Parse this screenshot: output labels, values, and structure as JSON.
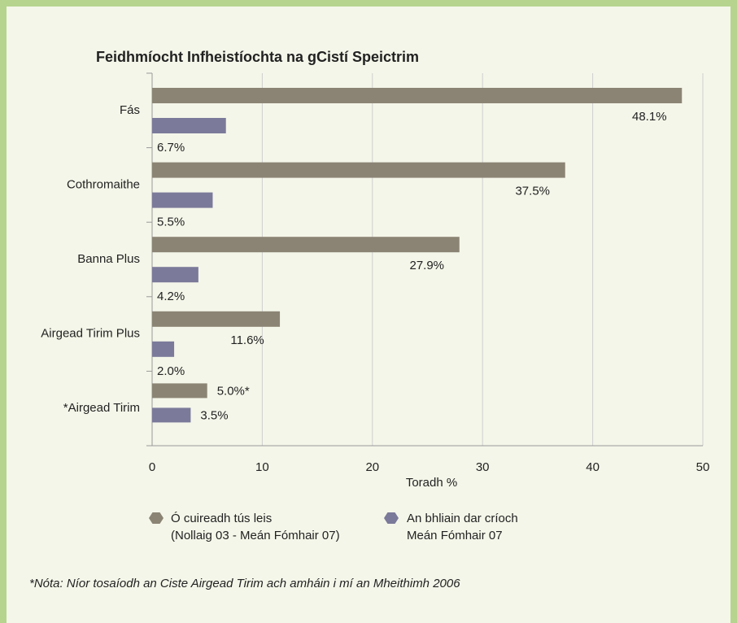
{
  "chart_data": {
    "type": "hbar",
    "title": "Feidhmíocht Infheistíochta na gCistí Speictrim",
    "categories": [
      "Fás",
      "Cothromaithe",
      "Banna Plus",
      "Airgead Tirim Plus",
      "*Airgead Tirim"
    ],
    "series": [
      {
        "name": "Ó cuireadh tús leis\n(Nollaig 03 - Meán Fómhair 07)",
        "color": "#8b8474",
        "values": [
          48.1,
          37.5,
          27.9,
          11.6,
          5.0
        ],
        "value_labels": [
          "48.1%",
          "37.5%",
          "27.9%",
          "11.6%",
          "5.0%*"
        ]
      },
      {
        "name": "An bhliain dar críoch\nMeán Fómhair 07",
        "color": "#7b7a9a",
        "values": [
          6.7,
          5.5,
          4.2,
          2.0,
          3.5
        ],
        "value_labels": [
          "6.7%",
          "5.5%",
          "4.2%",
          "2.0%",
          "3.5%"
        ]
      }
    ],
    "xlabel": "Toradh %",
    "xlim": [
      0,
      50
    ],
    "xticks": [
      0,
      10,
      20,
      30,
      40,
      50
    ],
    "grid": true,
    "note": "*Nóta: Níor tosaíodh an Ciste Airgead Tirim ach amháin i mí an Mheithimh 2006"
  }
}
